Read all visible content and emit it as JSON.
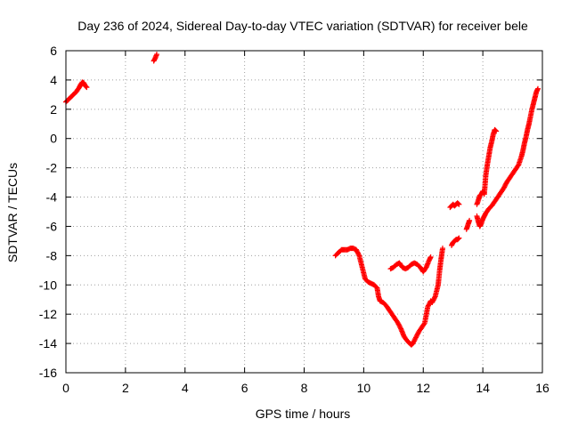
{
  "chart_data": {
    "type": "scatter",
    "title": "Day 236 of 2024, Sidereal Day-to-day VTEC variation (SDTVAR) for receiver bele",
    "xlabel": "GPS time / hours",
    "ylabel": "SDTVAR / TECUs",
    "xlim": [
      0,
      16
    ],
    "ylim": [
      -16,
      6
    ],
    "xticks": [
      0,
      2,
      4,
      6,
      8,
      10,
      12,
      14,
      16
    ],
    "yticks": [
      -16,
      -14,
      -12,
      -10,
      -8,
      -6,
      -4,
      -2,
      0,
      2,
      4,
      6
    ],
    "grid": true,
    "marker": "+",
    "color": "#ff0000",
    "series": [
      {
        "name": "segment-1",
        "x": [
          0.0,
          0.05,
          0.1,
          0.15,
          0.2,
          0.25,
          0.3,
          0.35,
          0.4,
          0.45,
          0.5,
          0.55,
          0.6,
          0.65,
          0.7
        ],
        "y": [
          2.5,
          2.6,
          2.7,
          2.8,
          2.9,
          3.0,
          3.1,
          3.2,
          3.35,
          3.5,
          3.7,
          3.85,
          3.8,
          3.6,
          3.5
        ]
      },
      {
        "name": "segment-2",
        "x": [
          2.95,
          3.0,
          3.05
        ],
        "y": [
          5.3,
          5.5,
          5.75
        ]
      },
      {
        "name": "segment-3",
        "x": [
          9.05,
          9.15,
          9.25,
          9.35,
          9.45,
          9.55,
          9.65,
          9.75,
          9.85,
          9.95,
          10.05,
          10.15,
          10.25,
          10.35,
          10.45,
          10.5,
          10.55,
          10.65,
          10.75,
          10.85,
          10.95,
          11.05,
          11.15,
          11.25,
          11.35,
          11.45,
          11.55,
          11.6,
          11.65,
          11.75,
          11.85,
          11.95,
          12.05,
          12.15,
          12.25,
          12.3,
          12.4,
          12.5,
          12.55,
          12.6,
          12.65
        ],
        "y": [
          -8.0,
          -7.8,
          -7.6,
          -7.6,
          -7.6,
          -7.5,
          -7.5,
          -7.6,
          -8.0,
          -8.8,
          -9.6,
          -9.8,
          -9.9,
          -10.0,
          -10.2,
          -10.8,
          -11.1,
          -11.2,
          -11.4,
          -11.7,
          -12.0,
          -12.3,
          -12.6,
          -13.0,
          -13.5,
          -13.8,
          -14.0,
          -14.1,
          -14.0,
          -13.6,
          -13.2,
          -12.9,
          -12.6,
          -11.5,
          -11.1,
          -11.2,
          -10.8,
          -10.0,
          -9.0,
          -8.2,
          -7.5
        ]
      },
      {
        "name": "segment-4",
        "x": [
          10.9,
          11.0,
          11.1,
          11.2,
          11.3,
          11.4,
          11.5,
          11.6,
          11.7,
          11.8,
          11.9,
          12.0,
          12.1,
          12.2,
          12.25
        ],
        "y": [
          -8.9,
          -8.8,
          -8.6,
          -8.5,
          -8.8,
          -8.9,
          -8.8,
          -8.6,
          -8.5,
          -8.6,
          -8.8,
          -9.1,
          -8.8,
          -8.3,
          -8.1
        ]
      },
      {
        "name": "segment-5",
        "x": [
          12.9,
          12.95,
          13.0,
          13.05,
          13.1,
          13.15,
          13.2
        ],
        "y": [
          -4.7,
          -4.6,
          -4.5,
          -4.6,
          -4.5,
          -4.4,
          -4.5
        ]
      },
      {
        "name": "segment-6",
        "x": [
          12.95,
          13.0,
          13.05,
          13.1,
          13.15,
          13.2
        ],
        "y": [
          -7.3,
          -7.1,
          -7.0,
          -6.9,
          -6.9,
          -6.8
        ]
      },
      {
        "name": "segment-7",
        "x": [
          13.45,
          13.5,
          13.55
        ],
        "y": [
          -6.2,
          -5.9,
          -5.6
        ]
      },
      {
        "name": "segment-8",
        "x": [
          13.8,
          13.85,
          13.9,
          13.95,
          14.0,
          14.05,
          14.1,
          14.15,
          14.2,
          14.25,
          14.3,
          14.35,
          14.4,
          14.45
        ],
        "y": [
          -4.5,
          -4.2,
          -3.9,
          -3.8,
          -3.6,
          -3.8,
          -2.5,
          -1.8,
          -1.2,
          -0.6,
          -0.2,
          0.3,
          0.6,
          0.5
        ]
      },
      {
        "name": "segment-9",
        "x": [
          13.8,
          13.85,
          13.9,
          13.95,
          14.0,
          14.05,
          14.1,
          14.2,
          14.3,
          14.4,
          14.5,
          14.6,
          14.7,
          14.8,
          14.9,
          15.0,
          15.1,
          15.2,
          15.3,
          15.35,
          15.4,
          15.45,
          15.5,
          15.55,
          15.6,
          15.65,
          15.7,
          15.75,
          15.8,
          15.85
        ],
        "y": [
          -5.3,
          -5.7,
          -6.0,
          -5.8,
          -5.5,
          -5.3,
          -5.1,
          -4.8,
          -4.6,
          -4.3,
          -4.0,
          -3.7,
          -3.4,
          -3.0,
          -2.7,
          -2.4,
          -2.1,
          -1.8,
          -1.2,
          -0.8,
          -0.3,
          0.1,
          0.6,
          1.0,
          1.5,
          2.0,
          2.4,
          2.8,
          3.2,
          3.4
        ]
      }
    ]
  }
}
